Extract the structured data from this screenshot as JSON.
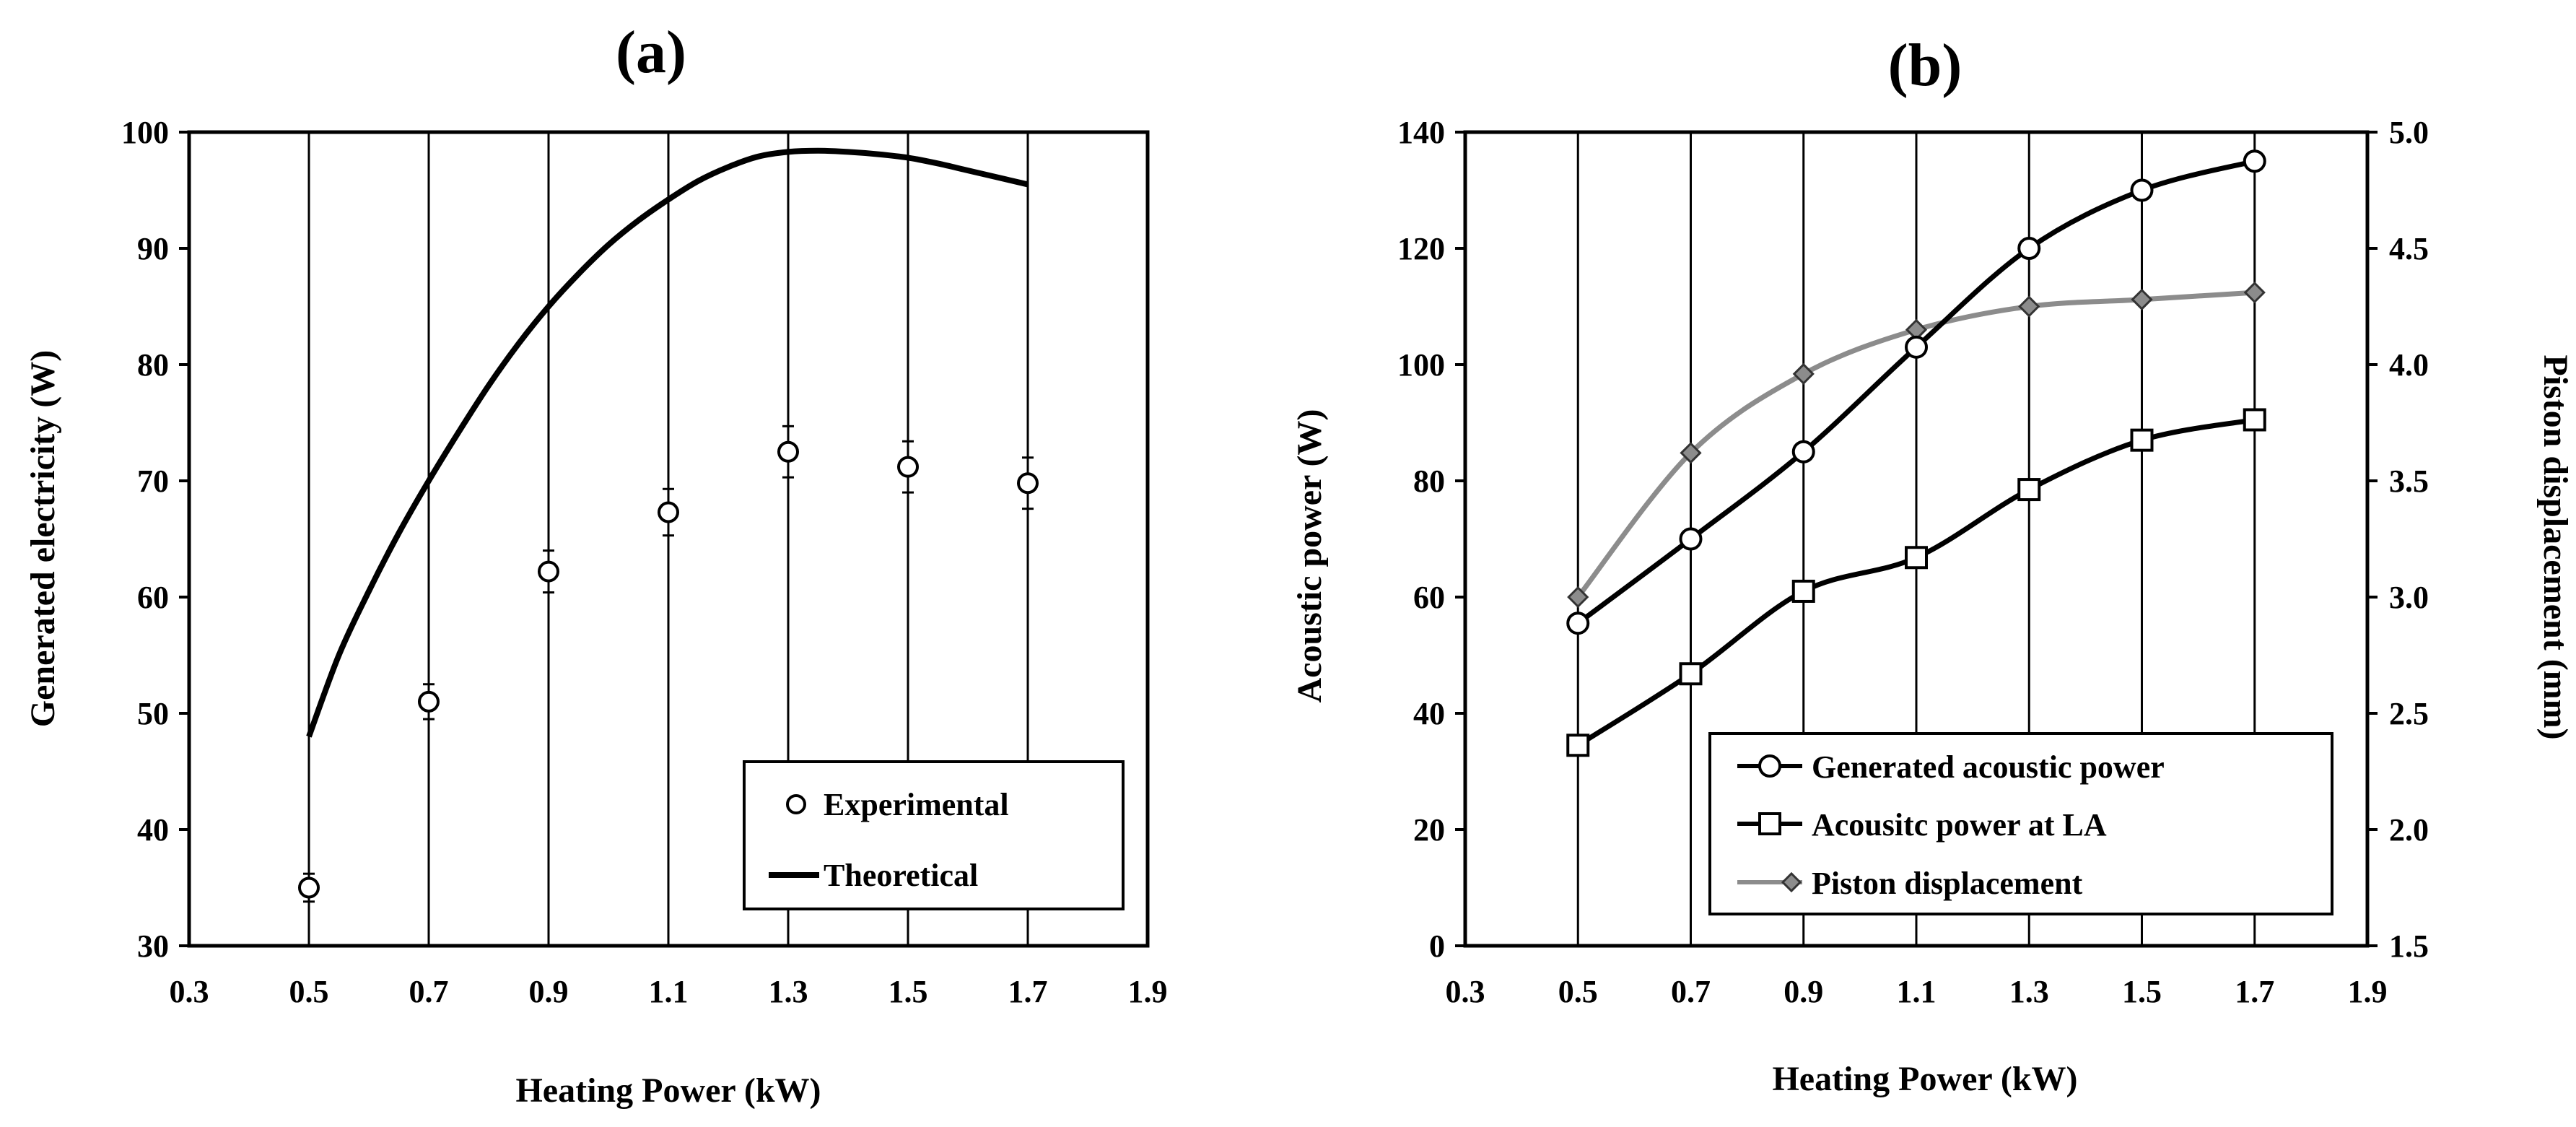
{
  "chart_data": [
    {
      "type": "scatter",
      "panel_label": "(a)",
      "xlabel": "Heating Power (kW)",
      "ylabel": "Generated electricity (W)",
      "xlim": [
        0.3,
        1.9
      ],
      "ylim": [
        30,
        100
      ],
      "x_ticks": [
        "0.3",
        "0.5",
        "0.7",
        "0.9",
        "1.1",
        "1.3",
        "1.5",
        "1.7",
        "1.9"
      ],
      "y_ticks": [
        "30",
        "40",
        "50",
        "60",
        "70",
        "80",
        "90",
        "100"
      ],
      "grid": "vertical",
      "legend_position": "bottom-right",
      "series": [
        {
          "name": "Experimental",
          "marker": "open-circle",
          "x": [
            0.5,
            0.7,
            0.9,
            1.1,
            1.3,
            1.5,
            1.7
          ],
          "y": [
            35.0,
            51.0,
            62.2,
            67.3,
            72.5,
            71.2,
            69.8
          ],
          "error": [
            1.2,
            1.5,
            1.8,
            2.0,
            2.2,
            2.2,
            2.2
          ]
        },
        {
          "name": "Theoretical",
          "line": "solid",
          "x": [
            0.5,
            0.55,
            0.6,
            0.65,
            0.7,
            0.75,
            0.8,
            0.85,
            0.9,
            0.95,
            1.0,
            1.05,
            1.1,
            1.15,
            1.2,
            1.25,
            1.3,
            1.35,
            1.4,
            1.45,
            1.5,
            1.55,
            1.6,
            1.65,
            1.7
          ],
          "y": [
            48.0,
            55.0,
            60.5,
            65.5,
            70.0,
            74.2,
            78.2,
            81.8,
            85.0,
            87.8,
            90.3,
            92.4,
            94.2,
            95.8,
            97.0,
            97.9,
            98.3,
            98.4,
            98.3,
            98.1,
            97.8,
            97.3,
            96.7,
            96.1,
            95.5
          ]
        }
      ]
    },
    {
      "type": "line",
      "panel_label": "(b)",
      "xlabel": "Heating Power (kW)",
      "ylabel": "Acoustic power (W)",
      "y2label": "Piston displacement (mm)",
      "xlim": [
        0.3,
        1.9
      ],
      "ylim": [
        0,
        140
      ],
      "y2lim": [
        1.5,
        5.0
      ],
      "x_ticks": [
        "0.3",
        "0.5",
        "0.7",
        "0.9",
        "1.1",
        "1.3",
        "1.5",
        "1.7",
        "1.9"
      ],
      "y_ticks": [
        "0",
        "20",
        "40",
        "60",
        "80",
        "100",
        "120",
        "140"
      ],
      "y2_ticks": [
        "1.5",
        "2.0",
        "2.5",
        "3.0",
        "3.5",
        "4.0",
        "4.5",
        "5.0"
      ],
      "grid": "vertical",
      "legend_position": "bottom-right",
      "series": [
        {
          "name": "Generated acoustic power",
          "marker": "open-circle",
          "color": "#000000",
          "axis": "left",
          "x": [
            0.5,
            0.7,
            0.9,
            1.1,
            1.3,
            1.5,
            1.7
          ],
          "y": [
            55.5,
            70.0,
            85.0,
            103.0,
            120.0,
            130.0,
            135.0
          ]
        },
        {
          "name": "Acousitc power at LA",
          "marker": "open-square",
          "color": "#000000",
          "axis": "left",
          "x": [
            0.5,
            0.7,
            0.9,
            1.1,
            1.3,
            1.5,
            1.7
          ],
          "y": [
            34.5,
            46.8,
            61.0,
            66.8,
            78.5,
            87.0,
            90.5
          ]
        },
        {
          "name": "Piston displacement",
          "marker": "diamond",
          "color": "#8c8c8c",
          "axis": "right",
          "x": [
            0.5,
            0.7,
            0.9,
            1.1,
            1.3,
            1.5,
            1.7
          ],
          "y": [
            3.0,
            3.62,
            3.96,
            4.15,
            4.25,
            4.28,
            4.31
          ]
        }
      ]
    }
  ]
}
